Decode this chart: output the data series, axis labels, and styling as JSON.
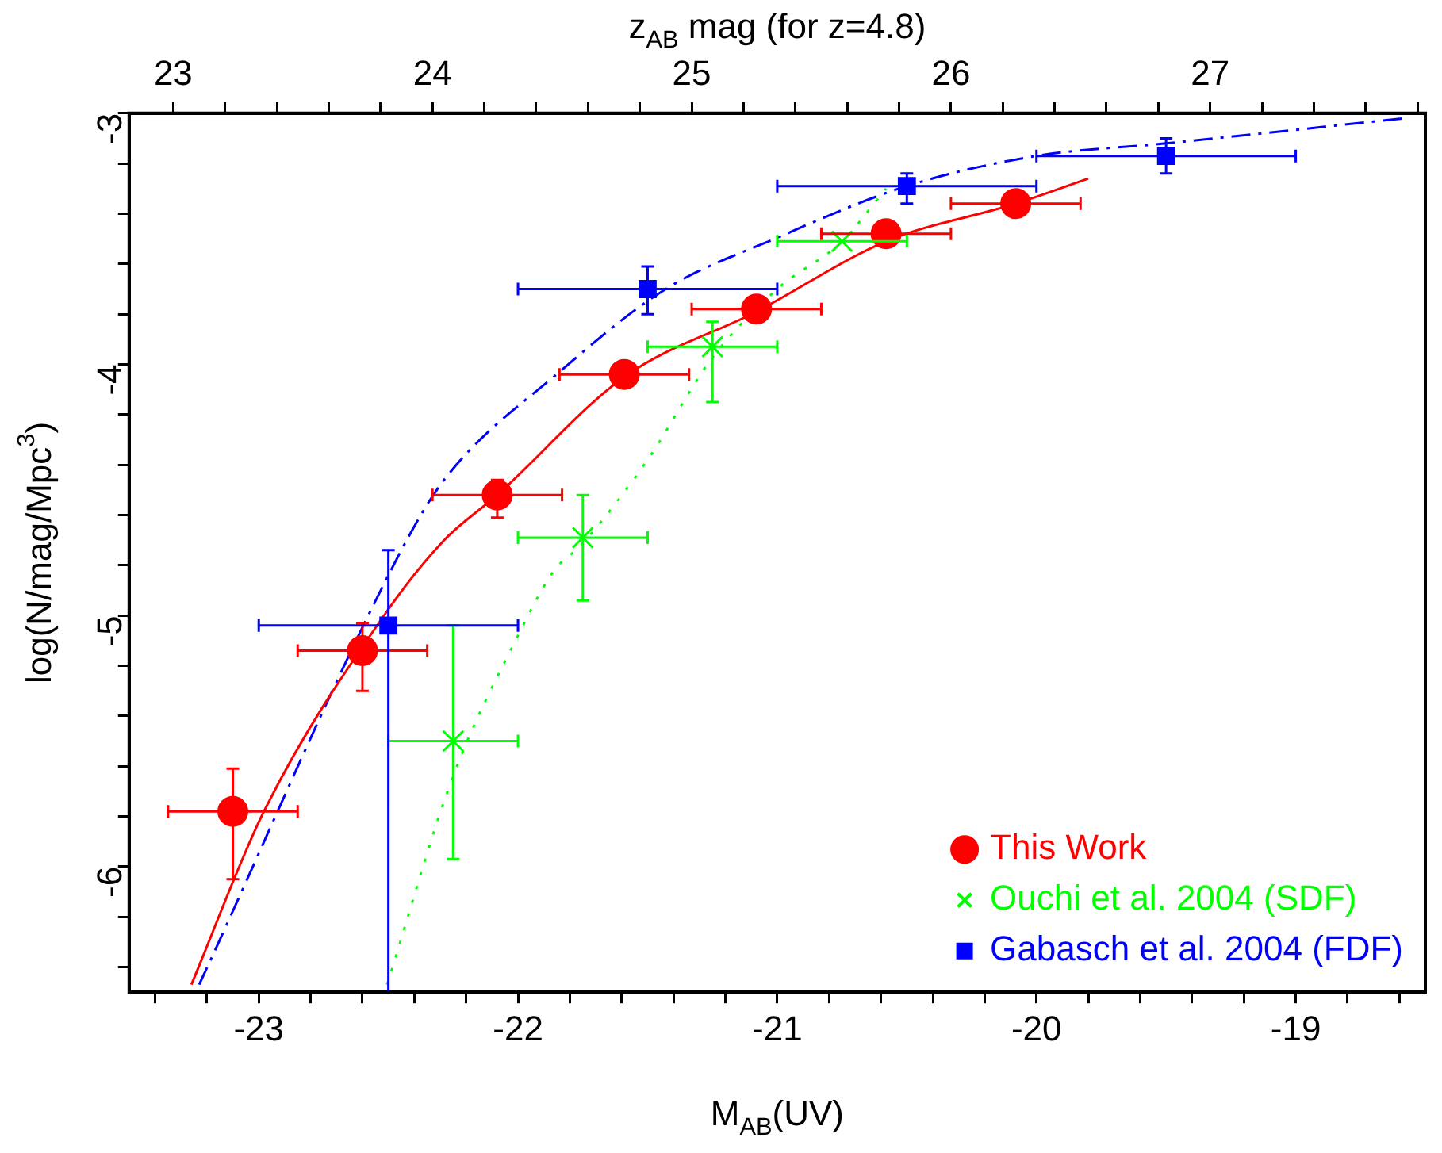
{
  "chart_data": {
    "type": "scatter",
    "xlabel": "M$_{AB}$(UV)",
    "ylabel": "log(N/mag/Mpc$^{3}$)",
    "x2label": "z$_{AB}$ mag (for z=4.8)",
    "xlim": [
      -23.5,
      -18.5
    ],
    "ylim": [
      -6.5,
      -3
    ],
    "x2lim": [
      22.83,
      27.83
    ],
    "xticks": [
      {
        "value": -23.4,
        "label": null
      },
      {
        "value": -23.2,
        "label": null
      },
      -23,
      {
        "value": -22.8,
        "label": null
      },
      {
        "value": -22.6,
        "label": null
      },
      {
        "value": -22.4,
        "label": null
      },
      {
        "value": -22.2,
        "label": null
      },
      -22,
      {
        "value": -21.8,
        "label": null
      },
      {
        "value": -21.6,
        "label": null
      },
      {
        "value": -21.4,
        "label": null
      },
      {
        "value": -21.2,
        "label": null
      },
      -21,
      {
        "value": -20.8,
        "label": null
      },
      {
        "value": -20.6,
        "label": null
      },
      {
        "value": -20.4,
        "label": null
      },
      {
        "value": -20.2,
        "label": null
      },
      -20,
      {
        "value": -19.8,
        "label": null
      },
      {
        "value": -19.6,
        "label": null
      },
      {
        "value": -19.4,
        "label": null
      },
      {
        "value": -19.2,
        "label": null
      },
      -19,
      {
        "value": -18.8,
        "label": null
      },
      {
        "value": -18.6,
        "label": null
      }
    ],
    "yticks": [
      {
        "value": -6.4,
        "label": null
      },
      {
        "value": -6.2,
        "label": null
      },
      -6,
      {
        "value": -5.8,
        "label": null
      },
      {
        "value": -5.6,
        "label": null
      },
      {
        "value": -5.4,
        "label": null
      },
      {
        "value": -5.2,
        "label": null
      },
      -5,
      {
        "value": -4.8,
        "label": null
      },
      {
        "value": -4.6,
        "label": null
      },
      {
        "value": -4.4,
        "label": null
      },
      {
        "value": -4.2,
        "label": null
      },
      -4,
      {
        "value": -3.8,
        "label": null
      },
      {
        "value": -3.6,
        "label": null
      },
      {
        "value": -3.4,
        "label": null
      },
      {
        "value": -3.2,
        "label": null
      },
      -3
    ],
    "x2ticks": [
      23,
      {
        "value": 23.2,
        "label": null
      },
      {
        "value": 23.4,
        "label": null
      },
      {
        "value": 23.6,
        "label": null
      },
      {
        "value": 23.8,
        "label": null
      },
      24,
      {
        "value": 24.2,
        "label": null
      },
      {
        "value": 24.4,
        "label": null
      },
      {
        "value": 24.6,
        "label": null
      },
      {
        "value": 24.8,
        "label": null
      },
      25,
      {
        "value": 25.2,
        "label": null
      },
      {
        "value": 25.4,
        "label": null
      },
      {
        "value": 25.6,
        "label": null
      },
      {
        "value": 25.8,
        "label": null
      },
      26,
      {
        "value": 26.2,
        "label": null
      },
      {
        "value": 26.4,
        "label": null
      },
      {
        "value": 26.6,
        "label": null
      },
      {
        "value": 26.8,
        "label": null
      },
      27,
      {
        "value": 27.2,
        "label": null
      },
      {
        "value": 27.4,
        "label": null
      },
      {
        "value": 27.6,
        "label": null
      },
      {
        "value": 27.8,
        "label": null
      }
    ],
    "legend": "bottom right",
    "series": [
      {
        "type": "line",
        "color": "#ff0000",
        "marker": "none",
        "line_style": "solid",
        "x": [
          -23.26,
          -22.98,
          -22.51,
          -22.285,
          -22.08,
          -21.59,
          -21.08,
          -20.58,
          -20.08,
          -19.8
        ],
        "values": [
          -6.47,
          -5.78,
          -4.99,
          -4.7,
          -4.52,
          -4.05,
          -3.79,
          -3.51,
          -3.36,
          -3.26
        ]
      },
      {
        "type": "line",
        "color": "#00ff00",
        "marker": "none",
        "line_style": "dotted",
        "x": [
          -22.505,
          -22.254,
          -22.0,
          -21.86,
          -21.757,
          -21.5,
          -21.255,
          -21.0,
          -20.75,
          -20.58
        ],
        "values": [
          -6.47,
          -5.65,
          -5.08,
          -4.82,
          -4.72,
          -4.38,
          -3.98,
          -3.7,
          -3.51,
          -3.3
        ]
      },
      {
        "type": "line",
        "color": "#0000ff",
        "marker": "none",
        "line_style": "dashed",
        "x": [
          -23.23,
          -22.45,
          -22.285,
          -21.84,
          -21.43,
          -21.01,
          -20.5,
          -20.0,
          -19.5,
          -18.58
        ],
        "values": [
          -6.47,
          -4.74,
          -4.46,
          -4.03,
          -3.7,
          -3.5,
          -3.29,
          -3.17,
          -3.12,
          -3.02
        ]
      },
      {
        "name": "This Work",
        "type": "scatter",
        "color": "#ff0000",
        "marker": "circle",
        "x": [
          -23.1,
          -22.6,
          -22.08,
          -21.59,
          -21.08,
          -20.58,
          -20.08
        ],
        "values": [
          -5.78,
          -5.14,
          -4.52,
          -4.04,
          -3.78,
          -3.48,
          -3.36
        ],
        "xerrors": [
          0.25,
          0.25,
          0.25,
          0.25,
          0.25,
          0.25,
          0.25
        ],
        "errors": [
          [
            -6.05,
            -5.61
          ],
          [
            -5.3,
            -5.03
          ],
          [
            -4.61,
            -4.46
          ],
          null,
          null,
          null,
          null
        ]
      },
      {
        "name": "Ouchi et al. 2004 (SDF)",
        "type": "scatter",
        "color": "#00ff00",
        "marker": "cross",
        "x": [
          -22.25,
          -21.75,
          -21.25,
          -20.75
        ],
        "values": [
          -5.5,
          -4.69,
          -3.93,
          -3.51
        ],
        "xerrors": [
          0.25,
          0.25,
          0.25,
          0.25
        ],
        "errors": [
          [
            -5.97,
            -5.04
          ],
          [
            -4.94,
            -4.52
          ],
          [
            -4.15,
            -3.83
          ],
          null
        ]
      },
      {
        "name": "Gabasch et al. 2004 (FDF)",
        "type": "scatter",
        "color": "#0000ff",
        "marker": "square",
        "x": [
          -22.5,
          -21.5,
          -20.5,
          -19.5
        ],
        "values": [
          -5.04,
          -3.7,
          -3.29,
          -3.17
        ],
        "xerrors": [
          0.5,
          0.5,
          0.5,
          0.5
        ],
        "errors": [
          [
            -6.5,
            -4.74
          ],
          [
            -3.8,
            -3.61
          ],
          [
            -3.36,
            -3.24
          ],
          [
            -3.24,
            -3.1
          ]
        ]
      }
    ]
  }
}
